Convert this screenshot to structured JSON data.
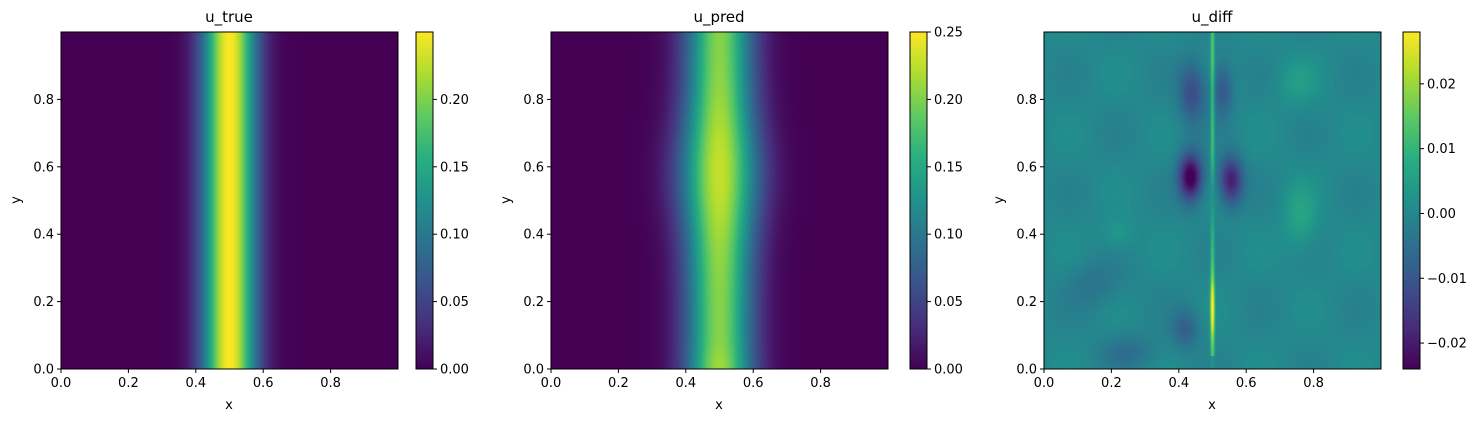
{
  "chart_data": [
    {
      "type": "heatmap",
      "title": "u_true",
      "xlabel": "x",
      "ylabel": "y",
      "xlim": [
        0,
        1
      ],
      "ylim": [
        0,
        1
      ],
      "xticks": [
        "0.0",
        "0.2",
        "0.4",
        "0.6",
        "0.8"
      ],
      "yticks": [
        "0.0",
        "0.2",
        "0.4",
        "0.6",
        "0.8"
      ],
      "colormap": "viridis",
      "colorbar": {
        "min": 0.0,
        "max": 0.25,
        "ticks": [
          "0.00",
          "0.05",
          "0.10",
          "0.15",
          "0.20"
        ]
      },
      "field": {
        "kind": "ridge",
        "center": 0.5,
        "peak": 0.25,
        "width": 0.14
      }
    },
    {
      "type": "heatmap",
      "title": "u_pred",
      "xlabel": "x",
      "ylabel": "y",
      "xlim": [
        0,
        1
      ],
      "ylim": [
        0,
        1
      ],
      "xticks": [
        "0.0",
        "0.2",
        "0.4",
        "0.6",
        "0.8"
      ],
      "yticks": [
        "0.0",
        "0.2",
        "0.4",
        "0.6",
        "0.8"
      ],
      "colormap": "viridis",
      "colorbar": {
        "min": 0.0,
        "max": 0.25,
        "ticks": [
          "0.00",
          "0.05",
          "0.10",
          "0.15",
          "0.20",
          "0.25"
        ]
      },
      "field": {
        "kind": "ridge",
        "center": 0.5,
        "peak": 0.22,
        "width": 0.17,
        "bulge_at_y": 0.58
      }
    },
    {
      "type": "heatmap",
      "title": "u_diff",
      "xlabel": "x",
      "ylabel": "y",
      "xlim": [
        0,
        1
      ],
      "ylim": [
        0,
        1
      ],
      "xticks": [
        "0.0",
        "0.2",
        "0.4",
        "0.6",
        "0.8"
      ],
      "yticks": [
        "0.0",
        "0.2",
        "0.4",
        "0.6",
        "0.8"
      ],
      "colormap": "viridis",
      "colorbar": {
        "min": -0.024,
        "max": 0.028,
        "ticks": [
          "−0.02",
          "−0.01",
          "0.00",
          "0.01",
          "0.02"
        ]
      },
      "field": {
        "kind": "difference",
        "center": 0.5,
        "min": -0.024,
        "max": 0.028
      }
    }
  ]
}
